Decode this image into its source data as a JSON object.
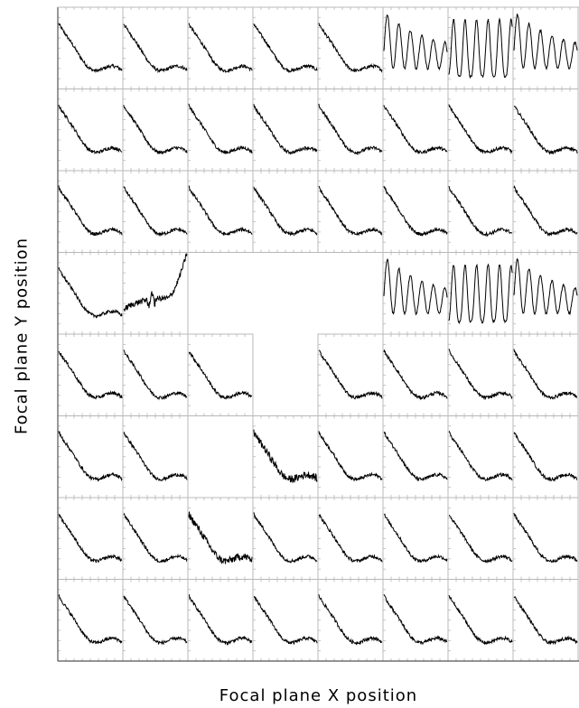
{
  "chart_data": {
    "type": "line",
    "layout": "small-multiples grid, 8 columns x 8 rows",
    "xlabel": "Focal plane X position",
    "ylabel": "Focal plane Y position",
    "title": "",
    "ticks_labeled": false,
    "grid": true,
    "line_color": "#000000",
    "grid_color": "#b8b8b8",
    "panels": [
      [
        {
          "row": 1,
          "col": 1,
          "profile": "decay"
        },
        {
          "row": 1,
          "col": 2,
          "profile": "decay"
        },
        {
          "row": 1,
          "col": 3,
          "profile": "decay"
        },
        {
          "row": 1,
          "col": 4,
          "profile": "decay"
        },
        {
          "row": 1,
          "col": 5,
          "profile": "decay"
        },
        {
          "row": 1,
          "col": 6,
          "profile": "oscillating"
        },
        {
          "row": 1,
          "col": 7,
          "profile": "oscillating-strong"
        },
        {
          "row": 1,
          "col": 8,
          "profile": "oscillating"
        }
      ],
      [
        {
          "row": 2,
          "col": 1,
          "profile": "decay"
        },
        {
          "row": 2,
          "col": 2,
          "profile": "decay"
        },
        {
          "row": 2,
          "col": 3,
          "profile": "decay"
        },
        {
          "row": 2,
          "col": 4,
          "profile": "decay"
        },
        {
          "row": 2,
          "col": 5,
          "profile": "decay"
        },
        {
          "row": 2,
          "col": 6,
          "profile": "decay"
        },
        {
          "row": 2,
          "col": 7,
          "profile": "decay"
        },
        {
          "row": 2,
          "col": 8,
          "profile": "decay"
        }
      ],
      [
        {
          "row": 3,
          "col": 1,
          "profile": "decay"
        },
        {
          "row": 3,
          "col": 2,
          "profile": "decay"
        },
        {
          "row": 3,
          "col": 3,
          "profile": "decay"
        },
        {
          "row": 3,
          "col": 4,
          "profile": "decay"
        },
        {
          "row": 3,
          "col": 5,
          "profile": "decay"
        },
        {
          "row": 3,
          "col": 6,
          "profile": "decay"
        },
        {
          "row": 3,
          "col": 7,
          "profile": "decay"
        },
        {
          "row": 3,
          "col": 8,
          "profile": "decay"
        }
      ],
      [
        {
          "row": 4,
          "col": 1,
          "profile": "decay"
        },
        {
          "row": 4,
          "col": 2,
          "profile": "rising"
        },
        {
          "row": 4,
          "col": 3,
          "profile": "empty"
        },
        {
          "row": 4,
          "col": 4,
          "profile": "empty"
        },
        {
          "row": 4,
          "col": 5,
          "profile": "empty"
        },
        {
          "row": 4,
          "col": 6,
          "profile": "oscillating"
        },
        {
          "row": 4,
          "col": 7,
          "profile": "oscillating-strong"
        },
        {
          "row": 4,
          "col": 8,
          "profile": "oscillating"
        }
      ],
      [
        {
          "row": 5,
          "col": 1,
          "profile": "decay"
        },
        {
          "row": 5,
          "col": 2,
          "profile": "decay"
        },
        {
          "row": 5,
          "col": 3,
          "profile": "decay"
        },
        {
          "row": 5,
          "col": 4,
          "profile": "empty"
        },
        {
          "row": 5,
          "col": 5,
          "profile": "decay"
        },
        {
          "row": 5,
          "col": 6,
          "profile": "decay"
        },
        {
          "row": 5,
          "col": 7,
          "profile": "decay"
        },
        {
          "row": 5,
          "col": 8,
          "profile": "decay"
        }
      ],
      [
        {
          "row": 6,
          "col": 1,
          "profile": "decay"
        },
        {
          "row": 6,
          "col": 2,
          "profile": "decay"
        },
        {
          "row": 6,
          "col": 3,
          "profile": "empty"
        },
        {
          "row": 6,
          "col": 4,
          "profile": "decay-noisy"
        },
        {
          "row": 6,
          "col": 5,
          "profile": "decay"
        },
        {
          "row": 6,
          "col": 6,
          "profile": "decay"
        },
        {
          "row": 6,
          "col": 7,
          "profile": "decay"
        },
        {
          "row": 6,
          "col": 8,
          "profile": "decay"
        }
      ],
      [
        {
          "row": 7,
          "col": 1,
          "profile": "decay"
        },
        {
          "row": 7,
          "col": 2,
          "profile": "decay"
        },
        {
          "row": 7,
          "col": 3,
          "profile": "decay-noisy"
        },
        {
          "row": 7,
          "col": 4,
          "profile": "decay"
        },
        {
          "row": 7,
          "col": 5,
          "profile": "decay"
        },
        {
          "row": 7,
          "col": 6,
          "profile": "decay"
        },
        {
          "row": 7,
          "col": 7,
          "profile": "decay"
        },
        {
          "row": 7,
          "col": 8,
          "profile": "decay"
        }
      ],
      [
        {
          "row": 8,
          "col": 1,
          "profile": "decay"
        },
        {
          "row": 8,
          "col": 2,
          "profile": "decay"
        },
        {
          "row": 8,
          "col": 3,
          "profile": "decay"
        },
        {
          "row": 8,
          "col": 4,
          "profile": "decay"
        },
        {
          "row": 8,
          "col": 5,
          "profile": "decay"
        },
        {
          "row": 8,
          "col": 6,
          "profile": "decay"
        },
        {
          "row": 8,
          "col": 7,
          "profile": "decay"
        },
        {
          "row": 8,
          "col": 8,
          "profile": "decay"
        }
      ]
    ]
  }
}
